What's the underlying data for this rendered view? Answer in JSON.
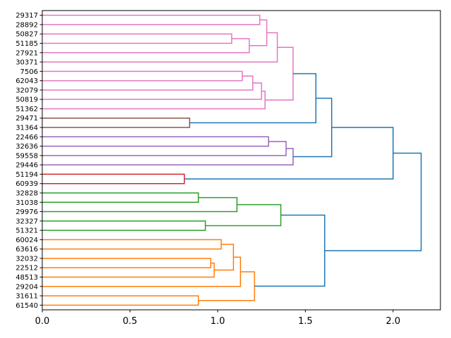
{
  "chart_data": {
    "type": "dendrogram",
    "orientation": "left-to-right",
    "title": "",
    "xlabel": "",
    "ylabel": "",
    "xlim": [
      0,
      2.27
    ],
    "x_ticks": [
      0.0,
      0.5,
      1.0,
      1.5,
      2.0
    ],
    "x_tick_labels": [
      "0.0",
      "0.5",
      "1.0",
      "1.5",
      "2.0"
    ],
    "above_threshold_color": "#1f77b4",
    "leaves": [
      "29317",
      "28892",
      "50827",
      "51185",
      "27921",
      "30371",
      "7506",
      "62043",
      "32079",
      "50819",
      "51362",
      "29471",
      "31364",
      "22466",
      "32636",
      "59558",
      "29446",
      "51194",
      "60939",
      "32828",
      "31038",
      "29976",
      "32327",
      "51321",
      "60024",
      "63616",
      "32032",
      "22512",
      "48513",
      "29204",
      "31611",
      "61540"
    ],
    "merges": [
      {
        "id": "m1",
        "left": "29317",
        "right": "28892",
        "height": 1.24,
        "color": "#e377c2"
      },
      {
        "id": "m2",
        "left": "50827",
        "right": "51185",
        "height": 1.08,
        "color": "#e377c2"
      },
      {
        "id": "m3",
        "left": "m2",
        "right": "27921",
        "height": 1.18,
        "color": "#e377c2"
      },
      {
        "id": "m4",
        "left": "m1",
        "right": "m3",
        "height": 1.28,
        "color": "#e377c2"
      },
      {
        "id": "m5",
        "left": "m4",
        "right": "30371",
        "height": 1.34,
        "color": "#e377c2"
      },
      {
        "id": "m6",
        "left": "7506",
        "right": "62043",
        "height": 1.14,
        "color": "#e377c2"
      },
      {
        "id": "m7",
        "left": "m6",
        "right": "32079",
        "height": 1.2,
        "color": "#e377c2"
      },
      {
        "id": "m8",
        "left": "m7",
        "right": "50819",
        "height": 1.25,
        "color": "#e377c2"
      },
      {
        "id": "m9",
        "left": "m8",
        "right": "51362",
        "height": 1.27,
        "color": "#e377c2"
      },
      {
        "id": "m10",
        "left": "m5",
        "right": "m9",
        "height": 1.43,
        "color": "#e377c2"
      },
      {
        "id": "m11",
        "left": "29471",
        "right": "31364",
        "height": 0.84,
        "color": "#8c564b"
      },
      {
        "id": "m12",
        "left": "m10",
        "right": "m11",
        "height": 1.56,
        "color": "#1f77b4"
      },
      {
        "id": "m13",
        "left": "22466",
        "right": "32636",
        "height": 1.29,
        "color": "#9467bd"
      },
      {
        "id": "m14",
        "left": "m13",
        "right": "59558",
        "height": 1.39,
        "color": "#9467bd"
      },
      {
        "id": "m15",
        "left": "m14",
        "right": "29446",
        "height": 1.43,
        "color": "#9467bd"
      },
      {
        "id": "m16",
        "left": "m12",
        "right": "m15",
        "height": 1.65,
        "color": "#1f77b4"
      },
      {
        "id": "m17",
        "left": "51194",
        "right": "60939",
        "height": 0.81,
        "color": "#d62728"
      },
      {
        "id": "m18",
        "left": "m16",
        "right": "m17",
        "height": 2.0,
        "color": "#1f77b4"
      },
      {
        "id": "m19",
        "left": "32828",
        "right": "31038",
        "height": 0.89,
        "color": "#2ca02c"
      },
      {
        "id": "m20",
        "left": "m19",
        "right": "29976",
        "height": 1.11,
        "color": "#2ca02c"
      },
      {
        "id": "m21",
        "left": "32327",
        "right": "51321",
        "height": 0.93,
        "color": "#2ca02c"
      },
      {
        "id": "m22",
        "left": "m20",
        "right": "m21",
        "height": 1.36,
        "color": "#2ca02c"
      },
      {
        "id": "m23",
        "left": "60024",
        "right": "63616",
        "height": 1.02,
        "color": "#ff7f0e"
      },
      {
        "id": "m24",
        "left": "32032",
        "right": "22512",
        "height": 0.96,
        "color": "#ff7f0e"
      },
      {
        "id": "m25",
        "left": "m24",
        "right": "48513",
        "height": 0.98,
        "color": "#ff7f0e"
      },
      {
        "id": "m26",
        "left": "m23",
        "right": "m25",
        "height": 1.09,
        "color": "#ff7f0e"
      },
      {
        "id": "m27",
        "left": "m26",
        "right": "29204",
        "height": 1.13,
        "color": "#ff7f0e"
      },
      {
        "id": "m28",
        "left": "31611",
        "right": "61540",
        "height": 0.89,
        "color": "#ff7f0e"
      },
      {
        "id": "m29",
        "left": "m27",
        "right": "m28",
        "height": 1.21,
        "color": "#ff7f0e"
      },
      {
        "id": "m30",
        "left": "m22",
        "right": "m29",
        "height": 1.61,
        "color": "#1f77b4"
      },
      {
        "id": "m31",
        "left": "m18",
        "right": "m30",
        "height": 2.16,
        "color": "#1f77b4"
      }
    ]
  }
}
